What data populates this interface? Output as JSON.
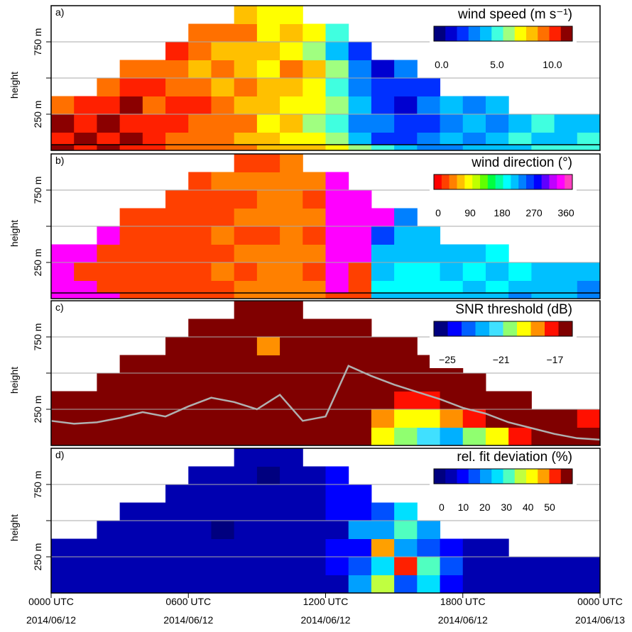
{
  "chart_data": [
    {
      "type": "heatmap",
      "label": "a)",
      "y_label": "height",
      "colorbar_title": "wind speed (m s⁻¹)",
      "colors": [
        "#00007f",
        "#0000d0",
        "#0030ff",
        "#0080ff",
        "#00c0ff",
        "#40ffe0",
        "#a0ff80",
        "#ffff00",
        "#ffc000",
        "#ff7000",
        "#ff2000",
        "#8b0000"
      ],
      "clim": [
        -0.7,
        11.8
      ],
      "colorbar_ticks": [
        {
          "value": 0,
          "label": "0.0"
        },
        {
          "value": 5,
          "label": "5.0"
        },
        {
          "value": 10,
          "label": "10.0"
        }
      ],
      "xlim": [
        0,
        24
      ],
      "ylim": [
        0,
        1000
      ],
      "yticks": [
        {
          "value": 250,
          "label": "250 m"
        },
        {
          "value": 750,
          "label": "750 m"
        }
      ],
      "minor_yticks": [
        500
      ],
      "x_bins": [
        0,
        1,
        2,
        3,
        4,
        5,
        6,
        7,
        8,
        9,
        10,
        11,
        12,
        13,
        14,
        15,
        16,
        17,
        18,
        19,
        20,
        21,
        22,
        23,
        24
      ],
      "y_bins": [
        0,
        125,
        250,
        375,
        500,
        625,
        750,
        875,
        1000
      ],
      "z": [
        [
          10,
          11,
          9
        ],
        [
          11,
          10,
          10
        ],
        [
          10,
          11,
          10,
          9
        ],
        [
          11,
          10,
          11,
          10,
          9
        ],
        [
          10,
          10,
          9,
          10,
          9
        ],
        [
          9,
          10,
          10,
          9,
          9,
          10
        ],
        [
          9,
          9,
          10,
          9,
          8,
          9,
          9
        ],
        [
          9,
          9,
          9,
          8,
          9,
          8,
          9
        ],
        [
          8,
          9,
          8,
          9,
          8,
          8,
          9,
          8
        ],
        [
          8,
          7,
          8,
          8,
          7,
          8,
          7,
          7
        ],
        [
          7,
          8,
          7,
          8,
          9,
          7,
          8,
          7
        ],
        [
          7,
          6,
          7,
          7,
          8,
          6,
          7
        ],
        [
          6,
          5,
          6,
          5,
          6,
          4,
          5
        ],
        [
          4,
          3,
          4,
          3,
          3,
          2
        ],
        [
          2,
          3,
          2,
          2,
          1
        ],
        [
          2,
          2,
          1,
          2,
          3
        ],
        [
          3,
          2,
          3,
          2
        ],
        [
          4,
          3,
          4
        ],
        [
          3,
          4,
          3
        ],
        [
          4,
          3,
          4
        ],
        [
          5,
          4
        ],
        [
          4,
          5
        ],
        [
          4,
          4
        ],
        [
          5,
          4
        ]
      ],
      "surface": [
        11,
        10,
        11,
        10,
        10,
        9,
        9,
        9,
        9,
        8,
        8,
        8,
        7,
        6,
        5,
        4,
        3,
        3,
        4,
        4,
        4,
        5,
        5,
        5
      ]
    },
    {
      "type": "heatmap",
      "label": "b)",
      "y_label": "height",
      "colorbar_title": "wind direction (°)",
      "colors": [
        "#ff0000",
        "#ff4000",
        "#ff8000",
        "#ffc000",
        "#ffff00",
        "#c0ff00",
        "#60ff00",
        "#00ff40",
        "#00ffa0",
        "#00ffff",
        "#00c0ff",
        "#0080ff",
        "#0040ff",
        "#0000ff",
        "#6000ff",
        "#c000ff",
        "#ff00ff",
        "#ff40c0"
      ],
      "clim": [
        -12,
        378
      ],
      "colorbar_ticks": [
        0,
        90,
        180,
        270,
        360
      ],
      "xlim": [
        0,
        24
      ],
      "ylim": [
        0,
        1000
      ],
      "yticks": [
        {
          "value": 250,
          "label": "250 m"
        },
        {
          "value": 750,
          "label": "750 m"
        }
      ],
      "minor_yticks": [
        500
      ],
      "x_bins": [
        0,
        1,
        2,
        3,
        4,
        5,
        6,
        7,
        8,
        9,
        10,
        11,
        12,
        13,
        14,
        15,
        16,
        17,
        18,
        19,
        20,
        21,
        22,
        23,
        24
      ],
      "y_bins": [
        0,
        125,
        250,
        375,
        500,
        625,
        750,
        875,
        1000
      ],
      "z": [
        [
          340,
          340,
          350
        ],
        [
          345,
          10,
          350
        ],
        [
          10,
          20,
          15,
          350
        ],
        [
          15,
          20,
          15,
          20,
          15
        ],
        [
          20,
          15,
          20,
          15,
          20
        ],
        [
          20,
          20,
          25,
          20,
          15,
          20
        ],
        [
          25,
          30,
          25,
          30,
          25,
          30,
          20
        ],
        [
          30,
          35,
          30,
          35,
          30,
          30,
          35
        ],
        [
          35,
          30,
          35,
          30,
          35,
          30,
          35,
          30
        ],
        [
          35,
          40,
          35,
          30,
          35,
          35,
          40,
          30
        ],
        [
          40,
          35,
          40,
          35,
          40,
          35,
          40,
          35
        ],
        [
          35,
          30,
          35,
          30,
          35,
          30,
          35
        ],
        [
          340,
          350,
          345,
          340,
          350,
          345,
          340
        ],
        [
          20,
          30,
          340,
          350,
          345,
          350
        ],
        [
          200,
          220,
          210,
          250,
          340
        ],
        [
          190,
          200,
          210,
          220,
          230
        ],
        [
          200,
          190,
          210,
          220
        ],
        [
          200,
          210,
          220
        ],
        [
          210,
          200,
          220
        ],
        [
          200,
          210,
          200
        ],
        [
          210,
          200
        ],
        [
          220,
          210
        ],
        [
          210,
          220
        ],
        [
          230,
          220
        ]
      ],
      "surface": [
        340,
        340,
        345,
        10,
        15,
        20,
        25,
        30,
        35,
        35,
        40,
        35,
        30,
        20,
        210,
        220,
        215,
        220,
        225,
        220,
        230,
        220,
        225,
        230
      ]
    },
    {
      "type": "heatmap",
      "label": "c)",
      "y_label": "height",
      "colorbar_title": "SNR threshold (dB)",
      "colors": [
        "#00007f",
        "#0000ff",
        "#0060ff",
        "#00b0ff",
        "#40e0ff",
        "#90ff70",
        "#ffff00",
        "#ff9000",
        "#ff1000",
        "#800000"
      ],
      "clim": [
        -26,
        -15.7
      ],
      "colorbar_ticks": [
        {
          "value": -25,
          "label": "−25"
        },
        {
          "value": -21,
          "label": "−21"
        },
        {
          "value": -17,
          "label": "−17"
        }
      ],
      "xlim": [
        0,
        24
      ],
      "ylim": [
        0,
        1000
      ],
      "yticks": [
        {
          "value": 250,
          "label": "250 m"
        },
        {
          "value": 750,
          "label": "750 m"
        }
      ],
      "minor_yticks": [
        500
      ],
      "x_bins": [
        0,
        1,
        2,
        3,
        4,
        5,
        6,
        7,
        8,
        9,
        10,
        11,
        12,
        13,
        14,
        15,
        16,
        17,
        18,
        19,
        20,
        21,
        22,
        23,
        24
      ],
      "y_bins": [
        0,
        125,
        250,
        375,
        500,
        625,
        750,
        875,
        1000
      ],
      "z": [
        [
          -16,
          -16,
          -16
        ],
        [
          -16,
          -16,
          -16
        ],
        [
          -16,
          -16,
          -16,
          -16
        ],
        [
          -16,
          -16,
          -16,
          -16,
          -16
        ],
        [
          -16,
          -16,
          -16,
          -16,
          -16
        ],
        [
          -16,
          -16,
          -16,
          -16,
          -16,
          -16
        ],
        [
          -16,
          -16,
          -16,
          -16,
          -16,
          -16,
          -16
        ],
        [
          -16,
          -16,
          -16,
          -16,
          -16,
          -16,
          -16
        ],
        [
          -16,
          -16,
          -16,
          -16,
          -16,
          -16,
          -16,
          -16
        ],
        [
          -16,
          -16,
          -16,
          -16,
          -16,
          -18,
          -16,
          -16
        ],
        [
          -16,
          -16,
          -16,
          -16,
          -16,
          -16,
          -16,
          -16
        ],
        [
          -16,
          -16,
          -16,
          -16,
          -16,
          -16,
          -16
        ],
        [
          -16,
          -16,
          -16,
          -16,
          -16,
          -16,
          -16
        ],
        [
          -16,
          -16,
          -16,
          -16,
          -16,
          -16,
          -16
        ],
        [
          -19,
          -18,
          -16,
          -16,
          -16,
          -16
        ],
        [
          -20,
          -19,
          -17,
          -16,
          -16,
          -16
        ],
        [
          -21,
          -19,
          -17,
          -16,
          -16
        ],
        [
          -22,
          -18,
          -16,
          -16,
          -16
        ],
        [
          -20,
          -17,
          -16,
          -16
        ],
        [
          -19,
          -16,
          -16
        ],
        [
          -17,
          -16,
          -16
        ],
        [
          -16,
          -16
        ],
        [
          -16,
          -16
        ],
        [
          -16,
          -17
        ]
      ],
      "line": {
        "color": "#b0b0b0",
        "x": [
          0,
          1,
          2,
          3,
          4,
          5,
          6,
          7,
          8,
          9,
          10,
          11,
          12,
          13,
          14,
          15,
          16,
          17,
          18,
          19,
          20,
          21,
          22,
          23,
          24
        ],
        "values": [
          170,
          150,
          160,
          190,
          230,
          200,
          270,
          330,
          300,
          250,
          350,
          170,
          200,
          550,
          480,
          420,
          370,
          320,
          260,
          220,
          160,
          120,
          80,
          50,
          40
        ]
      }
    },
    {
      "type": "heatmap",
      "label": "d)",
      "y_label": "height",
      "colorbar_title": "rel. fit deviation (%)",
      "colors": [
        "#00007f",
        "#0000b0",
        "#0000ff",
        "#0050ff",
        "#00a0ff",
        "#00e0ff",
        "#50ffc0",
        "#c0ff40",
        "#ffff00",
        "#ffa000",
        "#ff2000",
        "#800000"
      ],
      "clim": [
        -3.6,
        60.5
      ],
      "colorbar_ticks": [
        0,
        10,
        20,
        30,
        40,
        50
      ],
      "xlim": [
        0,
        24
      ],
      "ylim": [
        0,
        1000
      ],
      "yticks": [
        {
          "value": 250,
          "label": "250 m"
        },
        {
          "value": 750,
          "label": "750 m"
        }
      ],
      "minor_yticks": [
        500
      ],
      "xticks": [
        {
          "value": 0,
          "label": "0000 UTC",
          "date": "2014/06/12"
        },
        {
          "value": 6,
          "label": "0600 UTC",
          "date": "2014/06/12"
        },
        {
          "value": 12,
          "label": "1200 UTC",
          "date": "2014/06/12"
        },
        {
          "value": 18,
          "label": "1800 UTC",
          "date": "2014/06/12"
        },
        {
          "value": 24,
          "label": "0000 UTC",
          "date": "2014/06/13"
        }
      ],
      "x_bins": [
        0,
        1,
        2,
        3,
        4,
        5,
        6,
        7,
        8,
        9,
        10,
        11,
        12,
        13,
        14,
        15,
        16,
        17,
        18,
        19,
        20,
        21,
        22,
        23,
        24
      ],
      "y_bins": [
        0,
        125,
        250,
        375,
        500,
        625,
        750,
        875,
        1000
      ],
      "z": [
        [
          3,
          2,
          3
        ],
        [
          2,
          3,
          2
        ],
        [
          3,
          2,
          4,
          3
        ],
        [
          2,
          3,
          2,
          3,
          2
        ],
        [
          3,
          2,
          3,
          2,
          3
        ],
        [
          2,
          3,
          2,
          3,
          2,
          3
        ],
        [
          3,
          2,
          4,
          3,
          2,
          3,
          2
        ],
        [
          2,
          3,
          2,
          1,
          3,
          2,
          3
        ],
        [
          3,
          2,
          3,
          2,
          5,
          3,
          2,
          3
        ],
        [
          2,
          3,
          2,
          3,
          2,
          3,
          1,
          2
        ],
        [
          3,
          2,
          3,
          2,
          3,
          2,
          3,
          2
        ],
        [
          4,
          5,
          3,
          4,
          5,
          3,
          4
        ],
        [
          6,
          8,
          10,
          7,
          9,
          12,
          8
        ],
        [
          20,
          15,
          12,
          18,
          10,
          8
        ],
        [
          35,
          25,
          45,
          20,
          15
        ],
        [
          15,
          50,
          20,
          30,
          25
        ],
        [
          25,
          30,
          15,
          20
        ],
        [
          10,
          15,
          12
        ],
        [
          5,
          4,
          6
        ],
        [
          3,
          4,
          3
        ],
        [
          3,
          2
        ],
        [
          2,
          3
        ],
        [
          3,
          2
        ],
        [
          2,
          3
        ]
      ]
    }
  ]
}
